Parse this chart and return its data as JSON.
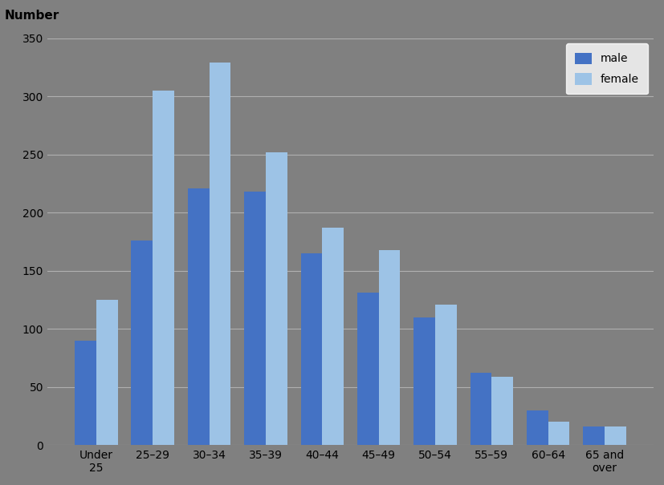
{
  "categories": [
    "Under\n25",
    "25–29",
    "30–34",
    "35–39",
    "40–44",
    "45–49",
    "50–54",
    "55–59",
    "60–64",
    "65 and\nover"
  ],
  "male_values": [
    90,
    176,
    221,
    218,
    165,
    131,
    110,
    62,
    30,
    16
  ],
  "female_values": [
    125,
    305,
    329,
    252,
    187,
    168,
    121,
    59,
    20,
    16
  ],
  "male_color": "#4472C4",
  "female_color": "#9DC3E6",
  "background_color": "#808080",
  "plot_bg_color": "#808080",
  "top_label": "Number",
  "ylim": [
    0,
    350
  ],
  "yticks": [
    0,
    50,
    100,
    150,
    200,
    250,
    300,
    350
  ],
  "legend_labels": [
    "male",
    "female"
  ],
  "grid_color": "#B0B0B0",
  "tick_fontsize": 10,
  "label_fontsize": 11,
  "bar_width": 0.38
}
